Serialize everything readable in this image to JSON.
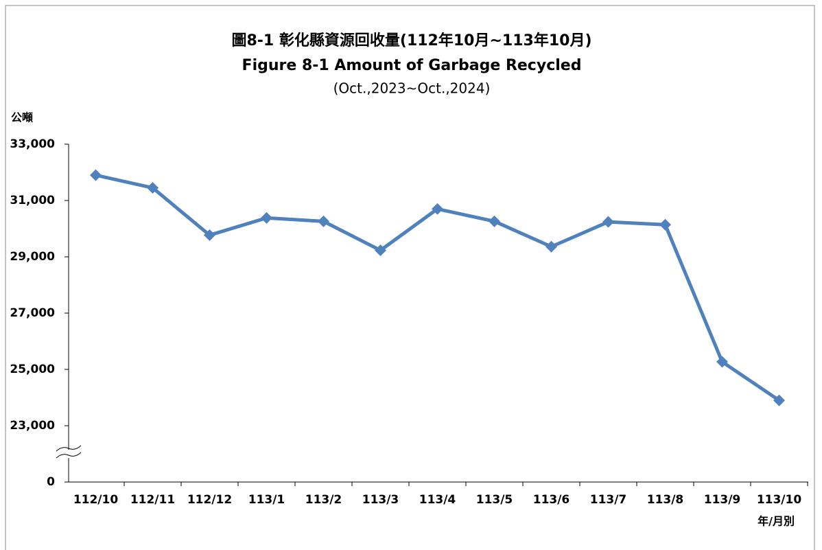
{
  "chart_data": {
    "type": "line",
    "title": "圖8-1 彰化縣資源回收量(112年10月~113年10月)",
    "subtitle": "Figure 8-1 Amount of Garbage Recycled",
    "period": "(Oct.,2023~Oct.,2024)",
    "y_axis_label": "公噸",
    "x_axis_label": "年/月別",
    "categories": [
      "112/10",
      "112/11",
      "112/12",
      "113/1",
      "113/2",
      "113/3",
      "113/4",
      "113/5",
      "113/6",
      "113/7",
      "113/8",
      "113/9",
      "113/10"
    ],
    "values": [
      31900,
      31450,
      29770,
      30380,
      30260,
      29230,
      30700,
      30260,
      29360,
      30240,
      30140,
      25270,
      23900
    ],
    "color": "#4f81bd",
    "ylim": [
      0,
      33000
    ],
    "yticks": [
      0,
      {
        "value": 23000,
        "label": "23,000"
      },
      {
        "value": 25000,
        "label": "25,000"
      },
      {
        "value": 27000,
        "label": "27,000"
      },
      {
        "value": 29000,
        "label": "29,000"
      },
      {
        "value": 31000,
        "label": "31,000"
      },
      {
        "value": 33000,
        "label": "33,000"
      }
    ],
    "axis_break": true,
    "grid": false
  }
}
